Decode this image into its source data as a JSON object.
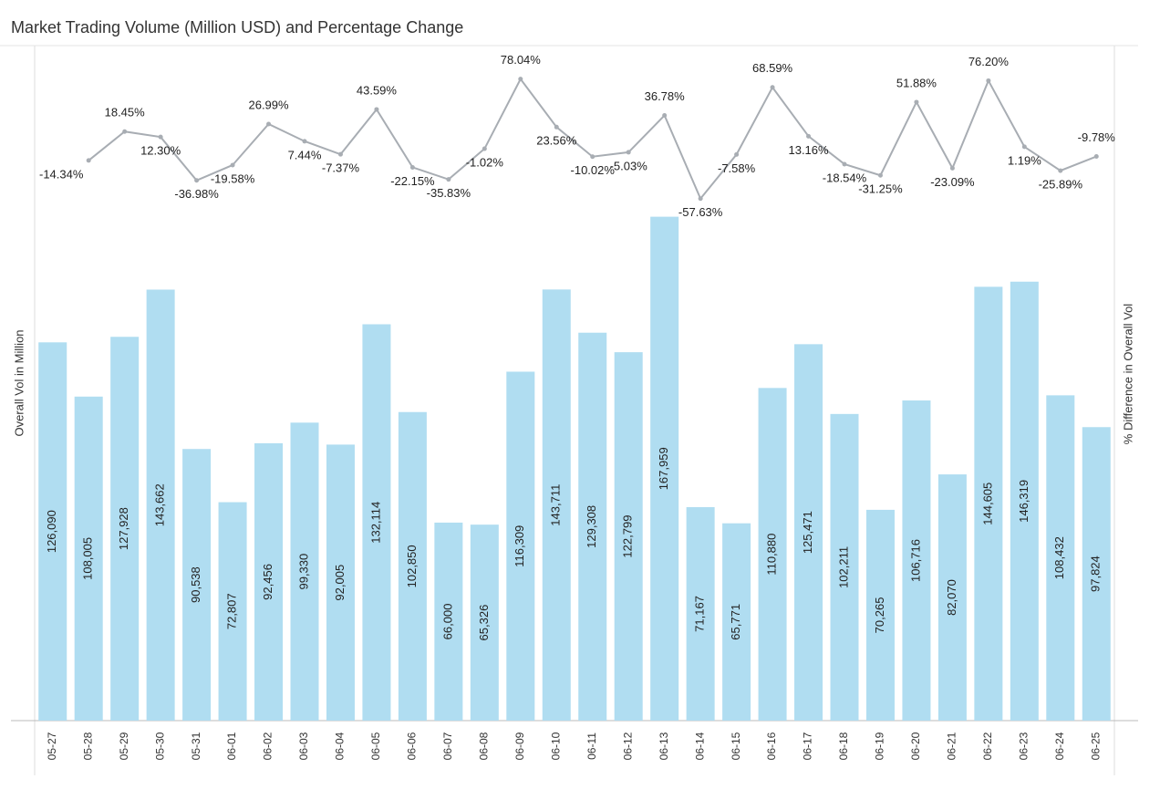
{
  "chart_data": {
    "type": "combo",
    "title": "Market Trading Volume (Million USD) and Percentage Change",
    "y_label": "Overall Vol in Million",
    "y2_label": "% Difference in Overall Vol",
    "categories": [
      "05-27",
      "05-28",
      "05-29",
      "05-30",
      "05-31",
      "06-01",
      "06-02",
      "06-03",
      "06-04",
      "06-05",
      "06-06",
      "06-07",
      "06-08",
      "06-09",
      "06-10",
      "06-11",
      "06-12",
      "06-13",
      "06-14",
      "06-15",
      "06-16",
      "06-17",
      "06-18",
      "06-19",
      "06-20",
      "06-21",
      "06-22",
      "06-23",
      "06-24",
      "06-25"
    ],
    "ylim": [
      0,
      225000
    ],
    "y2lim": [
      -650,
      116
    ],
    "series": [
      {
        "type": "bar",
        "color": "#b0ddf1",
        "values": [
          126090,
          108005,
          127928,
          143662,
          90538,
          72807,
          92456,
          99330,
          92005,
          132114,
          102850,
          66000,
          65326,
          116309,
          143711,
          129308,
          122799,
          167959,
          71167,
          65771,
          110880,
          125471,
          102211,
          70265,
          106716,
          82070,
          144605,
          146319,
          108432,
          97824
        ],
        "value_labels": [
          "126,090",
          "108,005",
          "127,928",
          "143,662",
          "90,538",
          "72,807",
          "92,456",
          "99,330",
          "92,005",
          "132,114",
          "102,850",
          "66,000",
          "65,326",
          "116,309",
          "143,711",
          "129,308",
          "122,799",
          "167,959",
          "71,167",
          "65,771",
          "110,880",
          "125,471",
          "102,211",
          "70,265",
          "106,716",
          "82,070",
          "144,605",
          "146,319",
          "108,432",
          "97,824"
        ]
      },
      {
        "type": "line",
        "axis": "y2",
        "color": "#a8adb3",
        "values": [
          null,
          -14.34,
          18.45,
          12.3,
          -36.98,
          -19.58,
          26.99,
          7.44,
          -7.37,
          43.59,
          -22.15,
          -35.83,
          -1.02,
          78.04,
          23.56,
          -10.02,
          -5.03,
          36.78,
          -57.63,
          -7.58,
          68.59,
          13.16,
          -18.54,
          -31.25,
          51.88,
          -23.09,
          76.2,
          1.19,
          -25.89,
          -9.78
        ],
        "value_labels": [
          null,
          "-14.34%",
          "18.45%",
          "12.30%",
          "-36.98%",
          "-19.58%",
          "26.99%",
          "7.44%",
          "-7.37%",
          "43.59%",
          "-22.15%",
          "-35.83%",
          "-1.02%",
          "78.04%",
          "23.56%",
          "-10.02%",
          "-5.03%",
          "36.78%",
          "-57.63%",
          "-7.58%",
          "68.59%",
          "13.16%",
          "-18.54%",
          "-31.25%",
          "51.88%",
          "-23.09%",
          "76.20%",
          "1.19%",
          "-25.89%",
          "-9.78%"
        ]
      }
    ]
  }
}
